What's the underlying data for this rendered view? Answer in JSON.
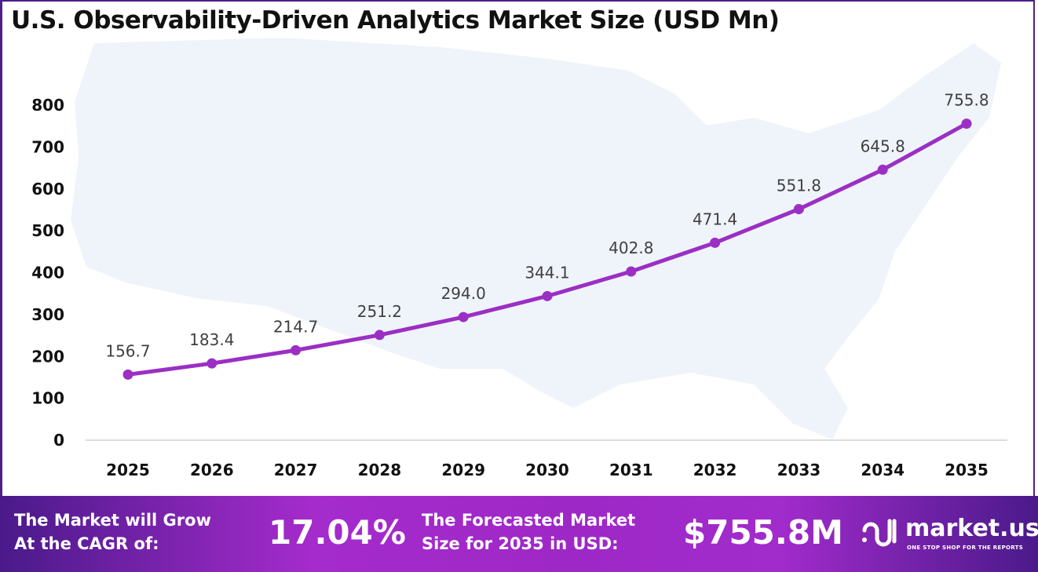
{
  "chart_data": {
    "type": "line",
    "title": "U.S. Observability-Driven Analytics Market Size (USD Mn)",
    "categories": [
      "2025",
      "2026",
      "2027",
      "2028",
      "2029",
      "2030",
      "2031",
      "2032",
      "2033",
      "2034",
      "2035"
    ],
    "values": [
      156.7,
      183.4,
      214.7,
      251.2,
      294.0,
      344.1,
      402.8,
      471.4,
      551.8,
      645.8,
      755.8
    ],
    "labels": [
      "156.7",
      "183.4",
      "214.7",
      "251.2",
      "294.0",
      "344.1",
      "402.8",
      "471.4",
      "551.8",
      "645.8",
      "755.8"
    ],
    "yticks": [
      "0",
      "100",
      "200",
      "300",
      "400",
      "500",
      "600",
      "700",
      "800"
    ],
    "ylim": [
      0,
      800
    ],
    "xlabel": "",
    "ylabel": "",
    "grid": false,
    "series_color": "#9b2fc4"
  },
  "banner": {
    "cagr_label_1": "The Market will Grow",
    "cagr_label_2": "At the CAGR of:",
    "cagr_value": "17.04%",
    "forecast_label_1": "The Forecasted Market",
    "forecast_label_2": "Size for 2035 in USD:",
    "forecast_value": "$755.8M",
    "logo_name": "market.us",
    "logo_tagline": "ONE STOP SHOP FOR THE REPORTS"
  }
}
